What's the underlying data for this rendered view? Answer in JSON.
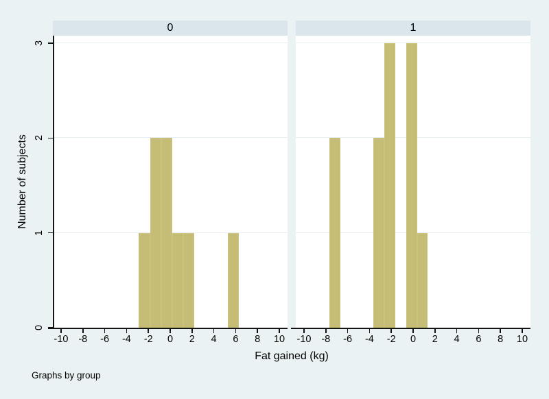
{
  "figure": {
    "colors": {
      "background": "#eaf2f3",
      "strip_background": "#dbe5ec",
      "plot_background": "#ffffff",
      "gridline": "#e7eef2",
      "axis": "#141414",
      "bar_fill": "#c5bd76",
      "bar_outline": "#cbc27f",
      "text": "#000000"
    }
  },
  "chart_data": {
    "type": "bar",
    "subtype": "histogram faceted by group (Stata graph-by)",
    "title": "",
    "xlabel": "Fat gained (kg)",
    "ylabel": "Number of subjects",
    "note": "Graphs by group",
    "xlim": [
      -10,
      10
    ],
    "ylim": [
      0,
      3
    ],
    "x_ticks": [
      -10,
      -8,
      -6,
      -4,
      -2,
      0,
      2,
      4,
      6,
      8,
      10
    ],
    "y_ticks": [
      0,
      1,
      2,
      3
    ],
    "grid": "horizontal gridlines at y = 1, 2, 3",
    "legend": "none",
    "bin_width_kg": 1.0,
    "panels": [
      {
        "label": "0",
        "bars": [
          {
            "x0": -2.87,
            "x1": -1.85,
            "count": 1
          },
          {
            "x0": -1.85,
            "x1": -0.83,
            "count": 2
          },
          {
            "x0": -0.83,
            "x1": 0.19,
            "count": 2
          },
          {
            "x0": 0.19,
            "x1": 1.21,
            "count": 1
          },
          {
            "x0": 1.21,
            "x1": 2.23,
            "count": 1
          },
          {
            "x0": 5.29,
            "x1": 6.31,
            "count": 1
          }
        ]
      },
      {
        "label": "1",
        "bars": [
          {
            "x0": -7.65,
            "x1": -6.65,
            "count": 2
          },
          {
            "x0": -3.65,
            "x1": -2.65,
            "count": 2
          },
          {
            "x0": -2.65,
            "x1": -1.65,
            "count": 3
          },
          {
            "x0": -0.65,
            "x1": 0.35,
            "count": 3
          },
          {
            "x0": 0.35,
            "x1": 1.35,
            "count": 1
          }
        ]
      }
    ]
  }
}
